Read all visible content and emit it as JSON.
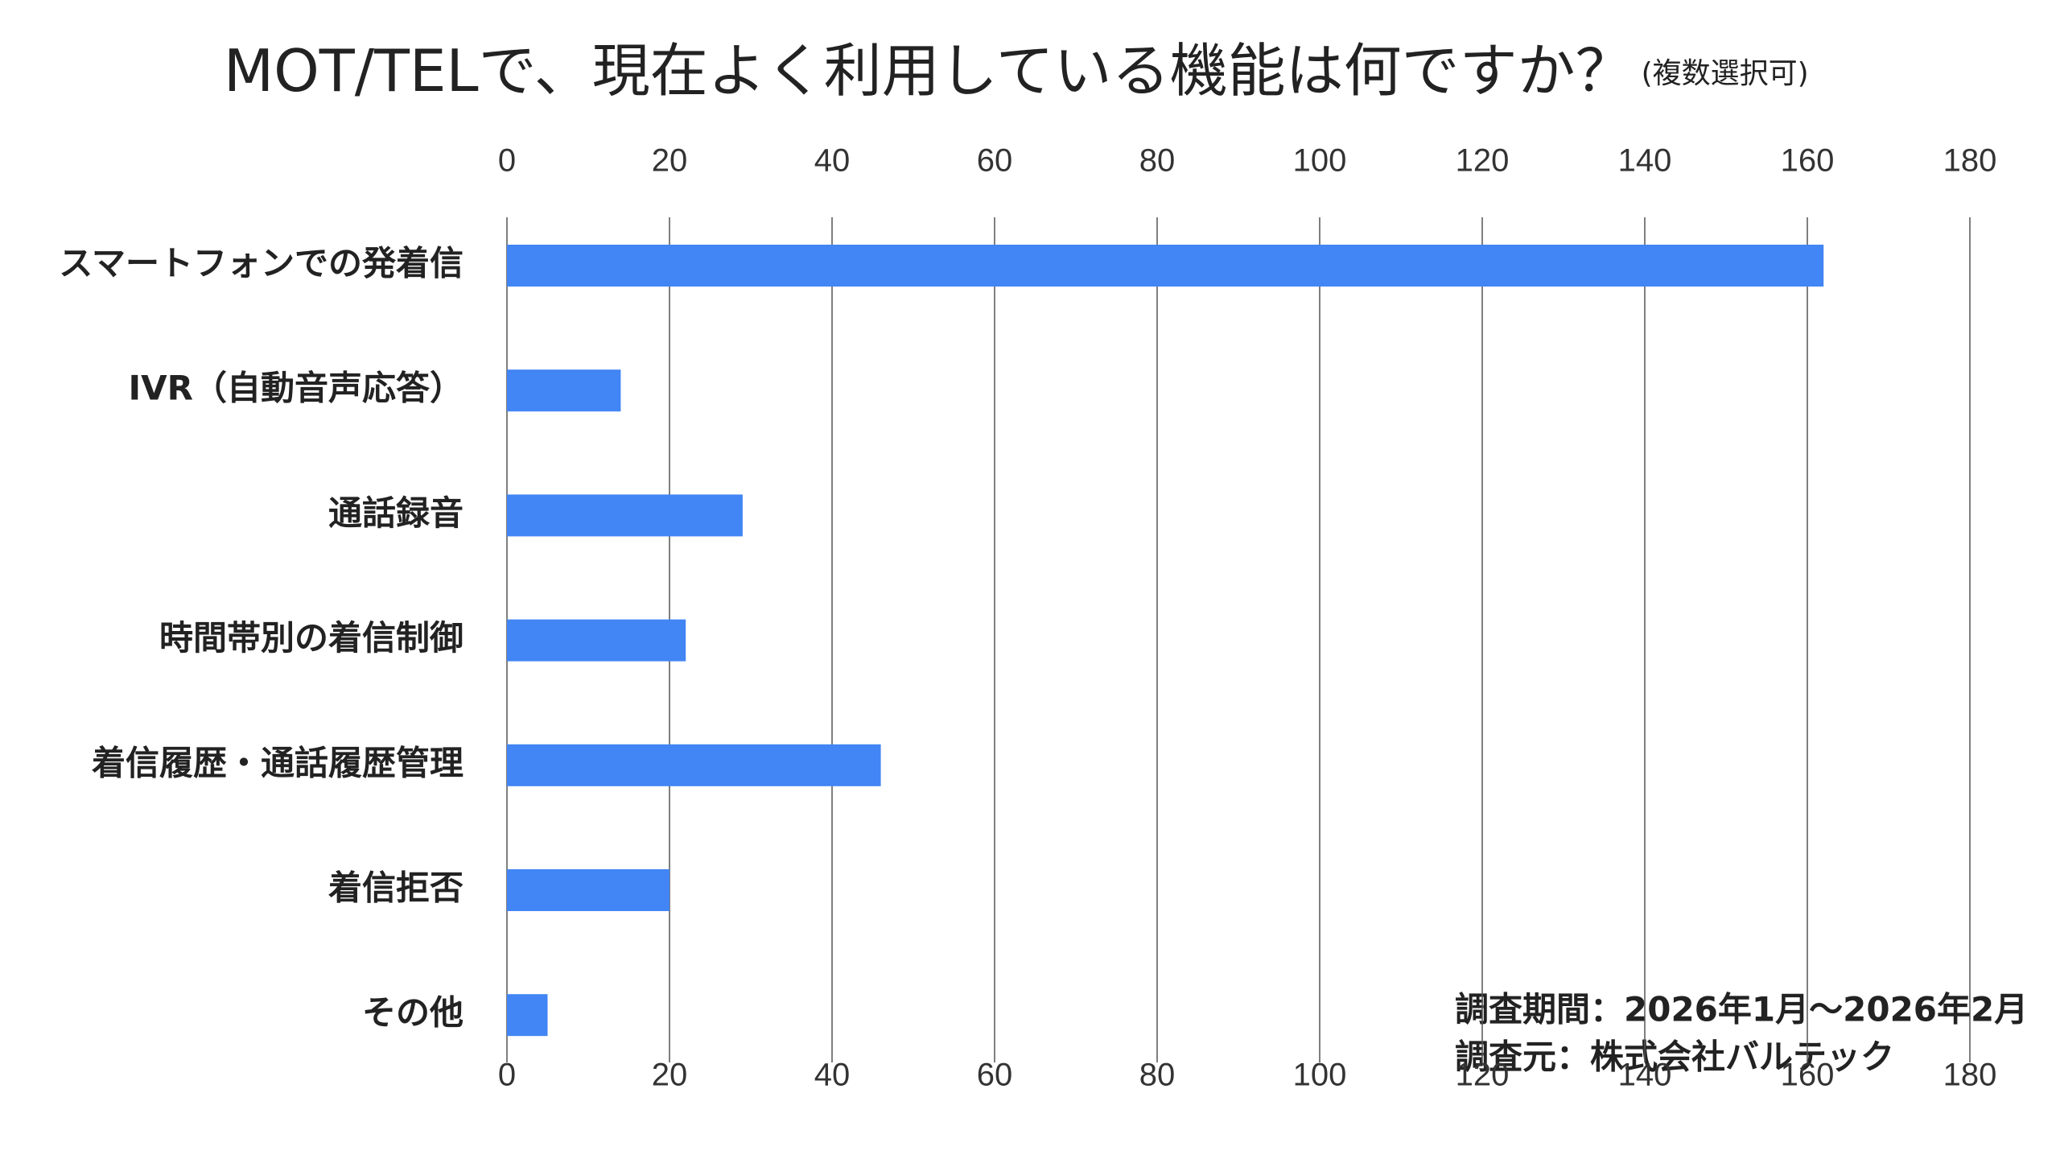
{
  "chart_data": {
    "type": "bar",
    "orientation": "horizontal",
    "title": "MOT/TELで、現在よく利用している機能は何ですか？",
    "subtitle": "(複数選択可)",
    "categories": [
      "スマートフォンでの発着信",
      "IVR（自動音声応答）",
      "通話録音",
      "時間帯別の着信制御",
      "着信履歴・通話履歴管理",
      "着信拒否",
      "その他"
    ],
    "values": [
      162,
      14,
      29,
      22,
      46,
      20,
      5
    ],
    "color": "#4285f4",
    "xlim": [
      0,
      180
    ],
    "xticks": [
      0,
      20,
      40,
      60,
      80,
      100,
      120,
      140,
      160,
      180
    ],
    "grid": true,
    "notes": [
      "調査期間：2026年1月～2026年2月",
      "調査元：株式会社バルテック"
    ]
  }
}
